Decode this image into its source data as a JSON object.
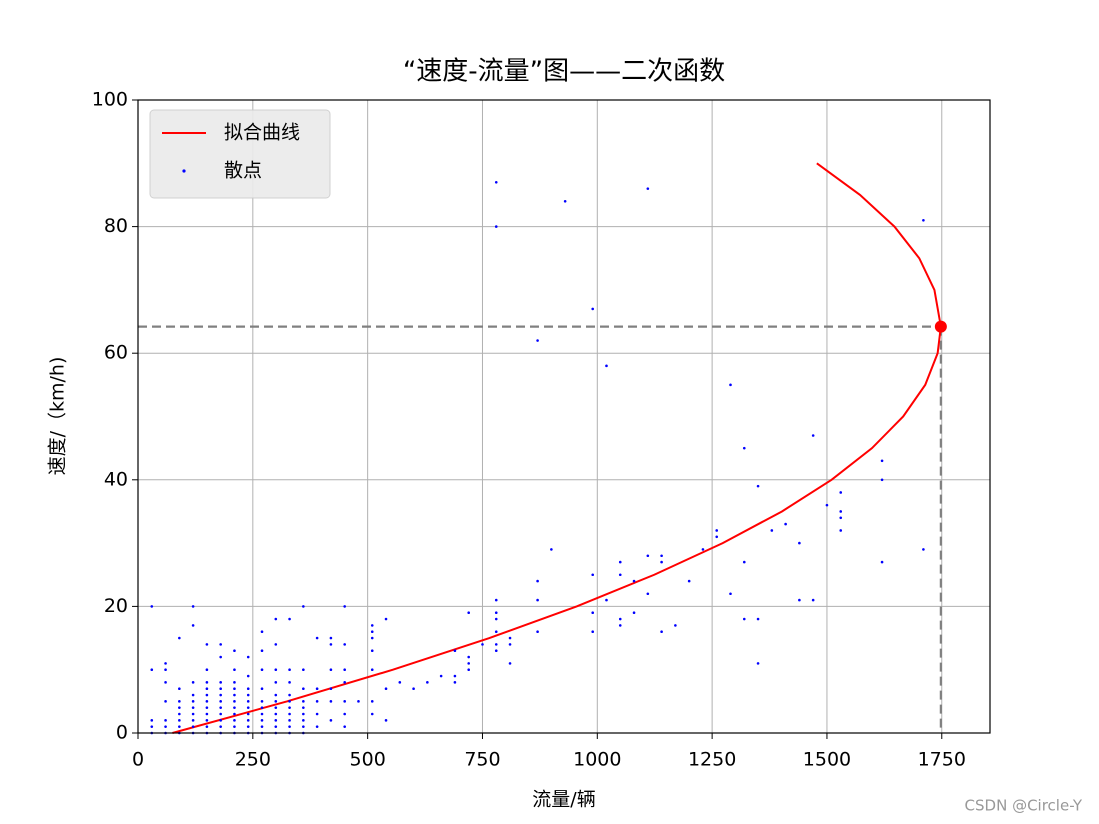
{
  "chart_data": {
    "type": "scatter",
    "title": "“速度-流量”图——二次函数",
    "xlabel": "流量/辆",
    "ylabel": "速度/（km/h)",
    "watermark": "CSDN @Circle-Y",
    "xlim": [
      0,
      1855
    ],
    "ylim": [
      0,
      100
    ],
    "xticks": [
      0,
      250,
      500,
      750,
      1000,
      1250,
      1500,
      1750
    ],
    "yticks": [
      0,
      20,
      40,
      60,
      80,
      100
    ],
    "grid": true,
    "legend": "upper left",
    "series": [
      {
        "name": "拟合曲线",
        "color": "#ff0000",
        "kind": "line",
        "x": [
          75,
          325,
          555,
          765,
          955,
          1124,
          1273,
          1402,
          1510,
          1598,
          1666,
          1714,
          1741,
          1748,
          1734,
          1701,
          1647,
          1572,
          1478
        ],
        "y": [
          0,
          5,
          10,
          15,
          20,
          25,
          30,
          35,
          40,
          45,
          50,
          55,
          60,
          64.2,
          70,
          75,
          80,
          85,
          90
        ]
      },
      {
        "name": "散点",
        "color": "#0000ff",
        "kind": "points",
        "x": [
          30,
          30,
          30,
          30,
          30,
          60,
          60,
          60,
          60,
          60,
          60,
          60,
          90,
          90,
          90,
          90,
          90,
          90,
          90,
          90,
          120,
          120,
          120,
          120,
          120,
          120,
          120,
          120,
          120,
          120,
          150,
          150,
          150,
          150,
          150,
          150,
          150,
          150,
          150,
          150,
          150,
          180,
          180,
          180,
          180,
          180,
          180,
          180,
          180,
          180,
          180,
          180,
          210,
          210,
          210,
          210,
          210,
          210,
          210,
          210,
          210,
          210,
          210,
          240,
          240,
          240,
          240,
          240,
          240,
          240,
          240,
          240,
          240,
          270,
          270,
          270,
          270,
          270,
          270,
          270,
          270,
          270,
          270,
          300,
          300,
          300,
          300,
          300,
          300,
          300,
          300,
          300,
          300,
          300,
          330,
          330,
          330,
          330,
          330,
          330,
          330,
          330,
          330,
          330,
          360,
          360,
          360,
          360,
          360,
          360,
          360,
          360,
          360,
          390,
          390,
          390,
          390,
          390,
          420,
          420,
          420,
          420,
          420,
          420,
          450,
          450,
          450,
          450,
          450,
          450,
          450,
          480,
          510,
          510,
          510,
          510,
          510,
          510,
          510,
          540,
          540,
          540,
          570,
          600,
          630,
          660,
          690,
          690,
          690,
          720,
          720,
          720,
          720,
          750,
          780,
          780,
          780,
          780,
          780,
          780,
          780,
          780,
          810,
          810,
          810,
          870,
          870,
          870,
          870,
          900,
          930,
          990,
          990,
          990,
          990,
          1020,
          1020,
          1050,
          1050,
          1050,
          1050,
          1080,
          1080,
          1110,
          1110,
          1110,
          1140,
          1140,
          1140,
          1170,
          1200,
          1230,
          1260,
          1260,
          1290,
          1290,
          1320,
          1320,
          1320,
          1350,
          1350,
          1350,
          1380,
          1410,
          1440,
          1440,
          1470,
          1470,
          1500,
          1530,
          1530,
          1530,
          1530,
          1620,
          1620,
          1620,
          1710,
          1710
        ],
        "y": [
          0,
          1,
          2,
          10,
          20,
          0,
          1,
          2,
          5,
          8,
          10,
          11,
          0,
          1,
          2,
          3,
          4,
          5,
          7,
          15,
          0,
          1,
          2,
          3,
          4,
          5,
          6,
          8,
          17,
          20,
          0,
          1,
          2,
          3,
          4,
          5,
          6,
          7,
          8,
          10,
          14,
          0,
          1,
          2,
          3,
          4,
          5,
          6,
          7,
          8,
          12,
          14,
          0,
          1,
          2,
          3,
          4,
          5,
          6,
          7,
          8,
          10,
          13,
          0,
          1,
          2,
          3,
          4,
          5,
          6,
          7,
          9,
          12,
          0,
          1,
          2,
          3,
          4,
          5,
          7,
          10,
          13,
          16,
          0,
          1,
          2,
          3,
          4,
          5,
          6,
          8,
          10,
          14,
          18,
          0,
          1,
          2,
          3,
          4,
          5,
          6,
          8,
          10,
          18,
          0,
          1,
          2,
          3,
          4,
          5,
          7,
          10,
          20,
          1,
          3,
          5,
          7,
          15,
          2,
          5,
          7,
          10,
          14,
          15,
          1,
          3,
          5,
          8,
          10,
          14,
          20,
          5,
          3,
          5,
          10,
          13,
          15,
          16,
          17,
          2,
          7,
          18,
          8,
          7,
          8,
          9,
          8,
          9,
          13,
          10,
          11,
          12,
          19,
          14,
          13,
          14,
          16,
          18,
          19,
          21,
          80,
          87,
          11,
          14,
          15,
          16,
          21,
          24,
          62,
          29,
          84,
          16,
          19,
          25,
          67,
          21,
          58,
          17,
          18,
          25,
          27,
          19,
          24,
          22,
          28,
          86,
          16,
          27,
          28,
          17,
          24,
          29,
          31,
          32,
          22,
          55,
          18,
          27,
          45,
          11,
          18,
          39,
          32,
          33,
          21,
          30,
          21,
          47,
          36,
          32,
          34,
          35,
          38,
          27,
          40,
          43,
          29,
          81
        ]
      }
    ],
    "marker": {
      "x": 1748,
      "y": 64.2,
      "color": "#ff0000"
    }
  }
}
